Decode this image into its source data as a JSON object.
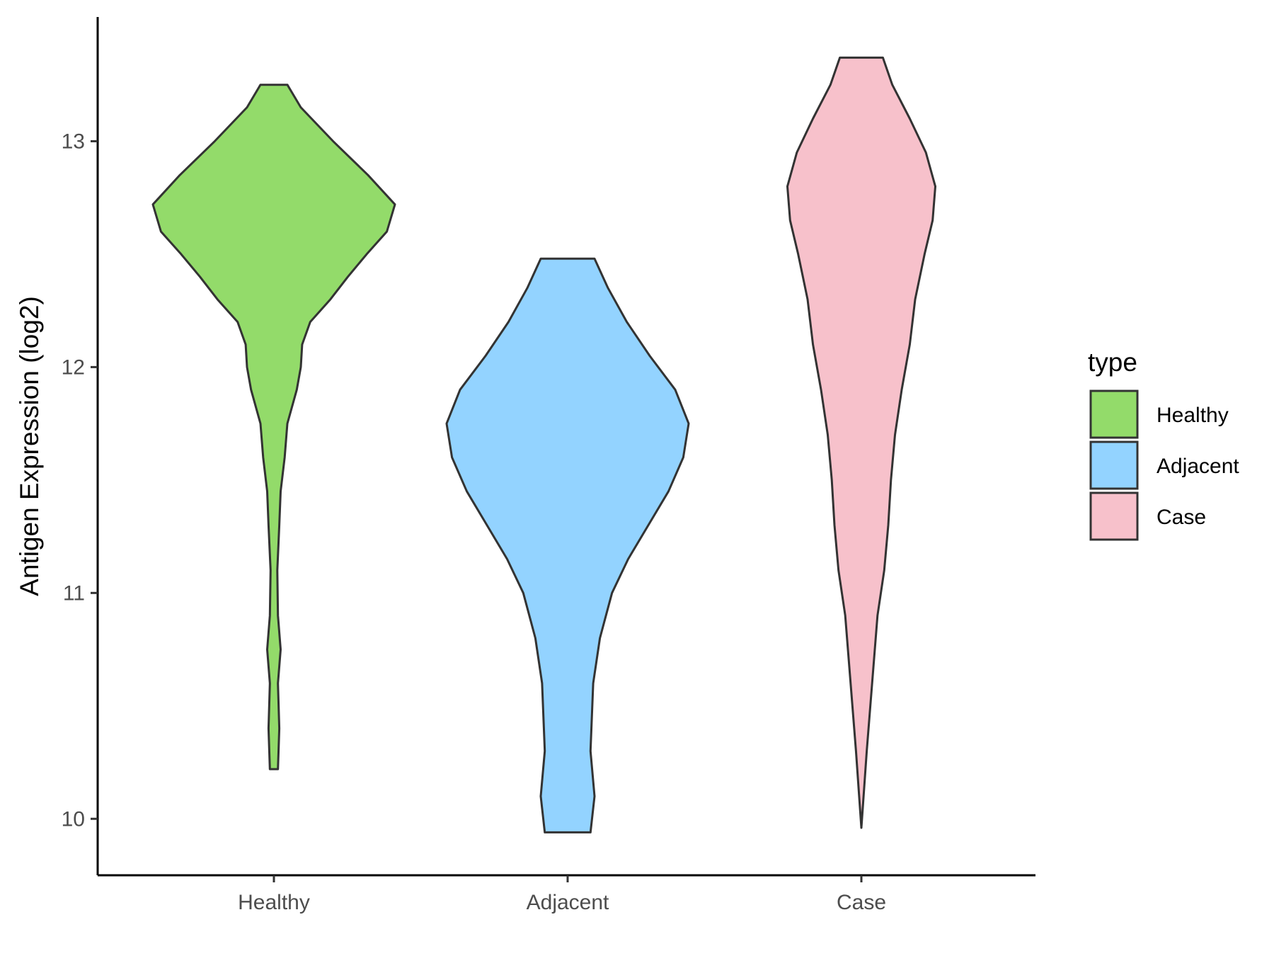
{
  "chart_data": {
    "type": "violin",
    "title": "",
    "xlabel": "",
    "ylabel": "Antigen Expression (log2)",
    "ylim": [
      9.75,
      13.55
    ],
    "yticks": [
      10,
      11,
      12,
      13
    ],
    "grid": false,
    "categories": [
      "Healthy",
      "Adjacent",
      "Case"
    ],
    "legend": {
      "title": "type",
      "position": "right",
      "entries": [
        "Healthy",
        "Adjacent",
        "Case"
      ]
    },
    "series": [
      {
        "category": "Healthy",
        "color": "#93DB6A",
        "range": [
          10.22,
          13.25
        ],
        "density": [
          [
            10.22,
            0.03
          ],
          [
            10.4,
            0.04
          ],
          [
            10.6,
            0.03
          ],
          [
            10.75,
            0.05
          ],
          [
            10.9,
            0.03
          ],
          [
            11.1,
            0.025
          ],
          [
            11.3,
            0.04
          ],
          [
            11.45,
            0.05
          ],
          [
            11.6,
            0.08
          ],
          [
            11.75,
            0.1
          ],
          [
            11.9,
            0.17
          ],
          [
            12.0,
            0.2
          ],
          [
            12.1,
            0.21
          ],
          [
            12.2,
            0.27
          ],
          [
            12.3,
            0.42
          ],
          [
            12.4,
            0.55
          ],
          [
            12.5,
            0.69
          ],
          [
            12.6,
            0.84
          ],
          [
            12.72,
            0.9
          ],
          [
            12.85,
            0.7
          ],
          [
            13.0,
            0.44
          ],
          [
            13.15,
            0.2
          ],
          [
            13.25,
            0.1
          ]
        ]
      },
      {
        "category": "Adjacent",
        "color": "#93D3FF",
        "range": [
          9.94,
          12.48
        ],
        "density": [
          [
            9.94,
            0.17
          ],
          [
            10.1,
            0.2
          ],
          [
            10.3,
            0.17
          ],
          [
            10.45,
            0.18
          ],
          [
            10.6,
            0.19
          ],
          [
            10.8,
            0.24
          ],
          [
            11.0,
            0.33
          ],
          [
            11.15,
            0.45
          ],
          [
            11.3,
            0.6
          ],
          [
            11.45,
            0.75
          ],
          [
            11.6,
            0.86
          ],
          [
            11.75,
            0.9
          ],
          [
            11.9,
            0.8
          ],
          [
            12.05,
            0.61
          ],
          [
            12.2,
            0.44
          ],
          [
            12.35,
            0.3
          ],
          [
            12.48,
            0.2
          ]
        ]
      },
      {
        "category": "Case",
        "color": "#F7C1CB",
        "range": [
          9.96,
          13.37
        ],
        "density": [
          [
            9.96,
            0.0
          ],
          [
            10.3,
            0.04
          ],
          [
            10.6,
            0.08
          ],
          [
            10.9,
            0.12
          ],
          [
            11.1,
            0.17
          ],
          [
            11.3,
            0.2
          ],
          [
            11.5,
            0.22
          ],
          [
            11.7,
            0.25
          ],
          [
            11.9,
            0.3
          ],
          [
            12.1,
            0.36
          ],
          [
            12.3,
            0.4
          ],
          [
            12.5,
            0.47
          ],
          [
            12.65,
            0.53
          ],
          [
            12.8,
            0.55
          ],
          [
            12.95,
            0.48
          ],
          [
            13.1,
            0.36
          ],
          [
            13.25,
            0.23
          ],
          [
            13.37,
            0.16
          ]
        ]
      }
    ]
  }
}
